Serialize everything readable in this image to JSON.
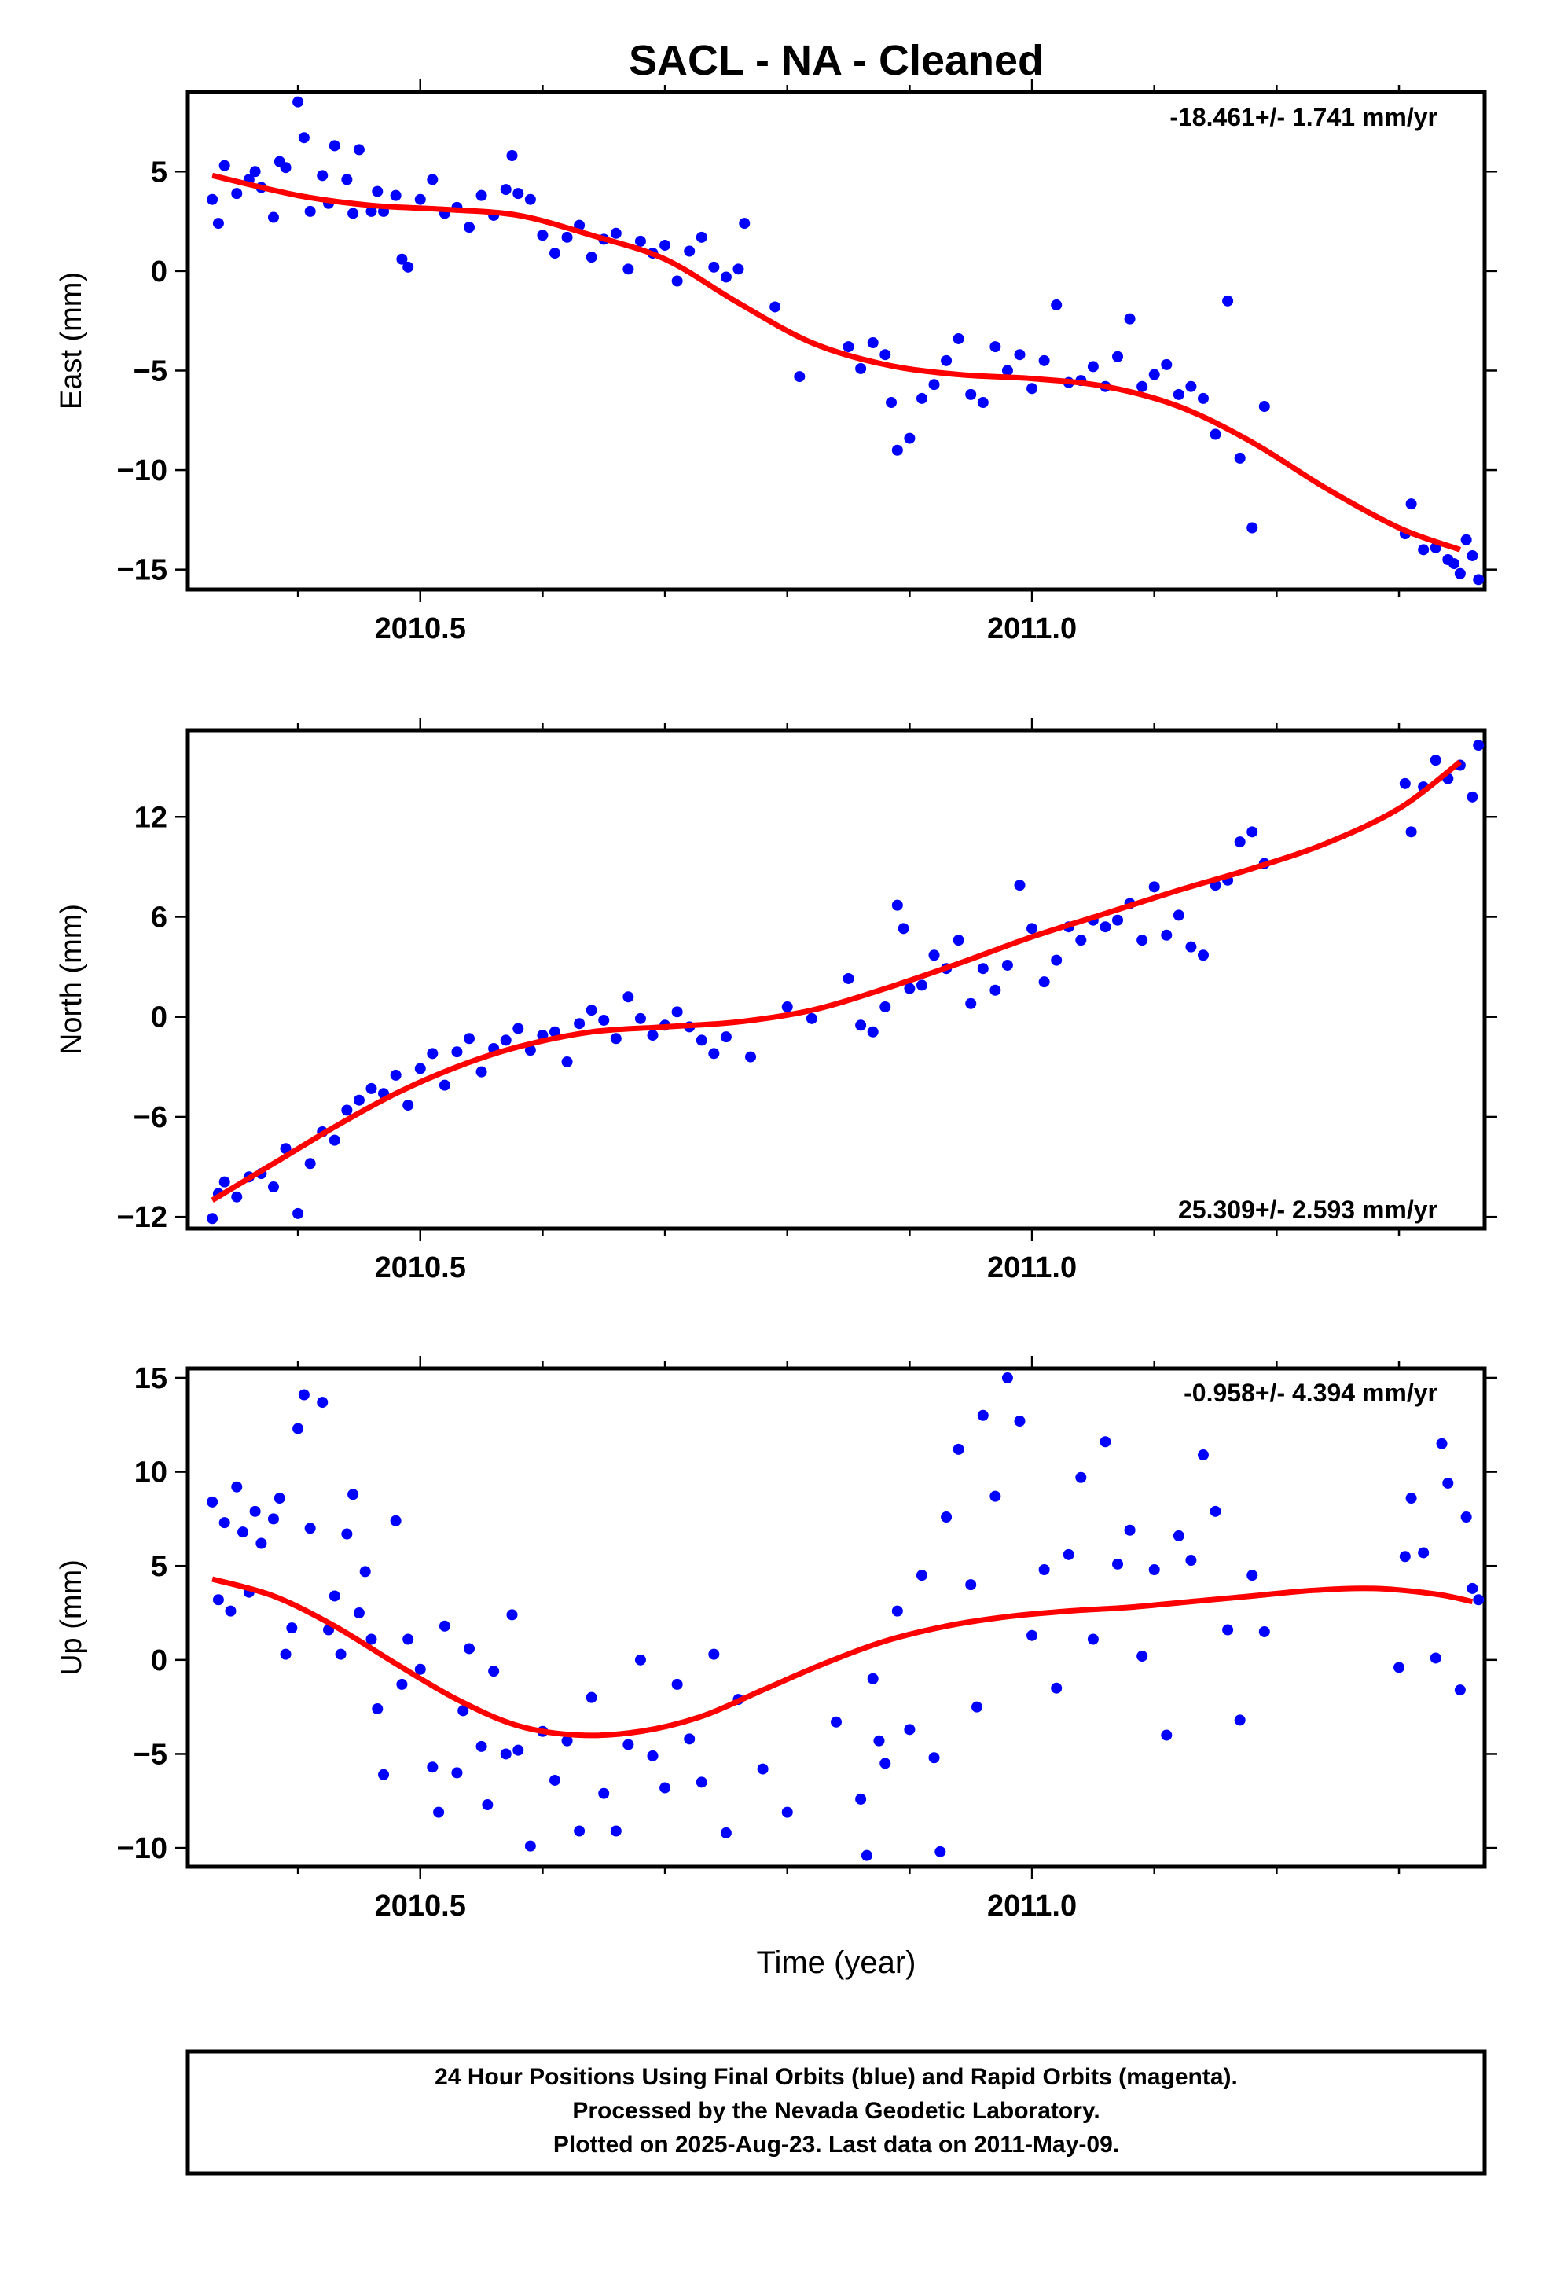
{
  "title": "SACL  - NA - Cleaned",
  "xlabel": "Time (year)",
  "footer": {
    "line1": "24 Hour Positions Using Final Orbits (blue) and Rapid Orbits (magenta).",
    "line2": "Processed by the Nevada Geodetic Laboratory.",
    "line3": "Plotted on 2025-Aug-23. Last data on 2011-May-09."
  },
  "colors": {
    "points": "#0000ff",
    "fit": "#ff0000",
    "frame": "#000000"
  },
  "chart_data": [
    {
      "type": "scatter",
      "ylabel": "East (mm)",
      "rate": "-18.461+/- 1.741 mm/yr",
      "xlim": [
        2010.31,
        2011.37
      ],
      "ylim": [
        -16,
        9
      ],
      "xticks": [
        2010.5,
        2011.0
      ],
      "yticks": [
        5,
        0,
        -5,
        -10,
        -15
      ],
      "fit": {
        "x": [
          2010.33,
          2010.4,
          2010.46,
          2010.52,
          2010.58,
          2010.64,
          2010.7,
          2010.76,
          2010.82,
          2010.88,
          2010.94,
          2011.0,
          2011.06,
          2011.12,
          2011.18,
          2011.24,
          2011.3,
          2011.35
        ],
        "y": [
          4.8,
          3.8,
          3.3,
          3.1,
          2.8,
          1.8,
          0.6,
          -1.6,
          -3.6,
          -4.7,
          -5.2,
          -5.4,
          -5.8,
          -6.8,
          -8.6,
          -10.9,
          -12.9,
          -14.0
        ]
      },
      "points": {
        "x": [
          2010.33,
          2010.335,
          2010.34,
          2010.35,
          2010.36,
          2010.365,
          2010.37,
          2010.38,
          2010.385,
          2010.39,
          2010.4,
          2010.405,
          2010.41,
          2010.42,
          2010.425,
          2010.43,
          2010.44,
          2010.445,
          2010.45,
          2010.46,
          2010.465,
          2010.47,
          2010.48,
          2010.485,
          2010.49,
          2010.5,
          2010.51,
          2010.52,
          2010.53,
          2010.54,
          2010.55,
          2010.56,
          2010.57,
          2010.575,
          2010.58,
          2010.59,
          2010.6,
          2010.61,
          2010.62,
          2010.63,
          2010.64,
          2010.65,
          2010.66,
          2010.67,
          2010.68,
          2010.69,
          2010.7,
          2010.71,
          2010.72,
          2010.73,
          2010.74,
          2010.75,
          2010.76,
          2010.765,
          2010.79,
          2010.81,
          2010.85,
          2010.86,
          2010.87,
          2010.88,
          2010.885,
          2010.89,
          2010.9,
          2010.91,
          2010.92,
          2010.93,
          2010.94,
          2010.95,
          2010.96,
          2010.97,
          2010.98,
          2010.99,
          2011.0,
          2011.01,
          2011.02,
          2011.03,
          2011.04,
          2011.05,
          2011.06,
          2011.07,
          2011.08,
          2011.09,
          2011.1,
          2011.11,
          2011.12,
          2011.13,
          2011.14,
          2011.15,
          2011.16,
          2011.17,
          2011.18,
          2011.19,
          2011.305,
          2011.31,
          2011.32,
          2011.33,
          2011.34,
          2011.35,
          2011.355,
          2011.36,
          2011.365,
          2011.345
        ],
        "y": [
          3.6,
          2.4,
          5.3,
          3.9,
          4.6,
          5.0,
          4.2,
          2.7,
          5.5,
          5.2,
          8.5,
          6.7,
          3.0,
          4.8,
          3.4,
          6.3,
          4.6,
          2.9,
          6.1,
          3.0,
          4.0,
          3.0,
          3.8,
          0.6,
          0.2,
          3.6,
          4.6,
          2.9,
          3.2,
          2.2,
          3.8,
          2.8,
          4.1,
          5.8,
          3.9,
          3.6,
          1.8,
          0.9,
          1.7,
          2.3,
          0.7,
          1.6,
          1.9,
          0.1,
          1.5,
          0.9,
          1.3,
          -0.5,
          1.0,
          1.7,
          0.2,
          -0.3,
          0.1,
          2.4,
          -1.8,
          -5.3,
          -3.8,
          -4.9,
          -3.6,
          -4.2,
          -6.6,
          -9.0,
          -8.4,
          -6.4,
          -5.7,
          -4.5,
          -3.4,
          -6.2,
          -6.6,
          -3.8,
          -5.0,
          -4.2,
          -5.9,
          -4.5,
          -1.7,
          -5.6,
          -5.5,
          -4.8,
          -5.8,
          -4.3,
          -2.4,
          -5.8,
          -5.2,
          -4.7,
          -6.2,
          -5.8,
          -6.4,
          -8.2,
          -1.5,
          -9.4,
          -12.9,
          -6.8,
          -13.2,
          -11.7,
          -14.0,
          -13.9,
          -14.5,
          -15.2,
          -13.5,
          -14.3,
          -15.5,
          -14.7
        ]
      }
    },
    {
      "type": "scatter",
      "ylabel": "North (mm)",
      "rate": "25.309+/- 2.593 mm/yr",
      "xlim": [
        2010.31,
        2011.37
      ],
      "ylim": [
        -12.7,
        17.2
      ],
      "xticks": [
        2010.5,
        2011.0
      ],
      "yticks": [
        12,
        6,
        0,
        -6,
        -12
      ],
      "fit": {
        "x": [
          2010.33,
          2010.38,
          2010.43,
          2010.48,
          2010.53,
          2010.58,
          2010.64,
          2010.7,
          2010.76,
          2010.82,
          2010.88,
          2010.94,
          2011.0,
          2011.06,
          2011.12,
          2011.18,
          2011.24,
          2011.3,
          2011.35
        ],
        "y": [
          -11.0,
          -8.8,
          -6.6,
          -4.6,
          -3.0,
          -1.8,
          -0.9,
          -0.6,
          -0.3,
          0.4,
          1.7,
          3.2,
          4.8,
          6.2,
          7.6,
          8.9,
          10.4,
          12.5,
          15.3
        ]
      },
      "points": {
        "x": [
          2010.33,
          2010.335,
          2010.34,
          2010.35,
          2010.36,
          2010.37,
          2010.38,
          2010.39,
          2010.4,
          2010.41,
          2010.42,
          2010.43,
          2010.44,
          2010.45,
          2010.46,
          2010.47,
          2010.48,
          2010.49,
          2010.5,
          2010.51,
          2010.52,
          2010.53,
          2010.54,
          2010.55,
          2010.56,
          2010.57,
          2010.58,
          2010.59,
          2010.6,
          2010.61,
          2010.62,
          2010.63,
          2010.64,
          2010.65,
          2010.66,
          2010.67,
          2010.68,
          2010.69,
          2010.7,
          2010.71,
          2010.72,
          2010.73,
          2010.74,
          2010.75,
          2010.77,
          2010.8,
          2010.82,
          2010.85,
          2010.86,
          2010.87,
          2010.88,
          2010.89,
          2010.895,
          2010.9,
          2010.91,
          2010.92,
          2010.93,
          2010.94,
          2010.95,
          2010.96,
          2010.97,
          2010.98,
          2010.99,
          2011.0,
          2011.01,
          2011.02,
          2011.03,
          2011.04,
          2011.05,
          2011.06,
          2011.07,
          2011.08,
          2011.09,
          2011.1,
          2011.11,
          2011.12,
          2011.13,
          2011.14,
          2011.15,
          2011.16,
          2011.17,
          2011.18,
          2011.19,
          2011.305,
          2011.31,
          2011.32,
          2011.33,
          2011.34,
          2011.35,
          2011.36,
          2011.365
        ],
        "y": [
          -12.1,
          -10.6,
          -9.9,
          -10.8,
          -9.6,
          -9.4,
          -10.2,
          -7.9,
          -11.8,
          -8.8,
          -6.9,
          -7.4,
          -5.6,
          -5.0,
          -4.3,
          -4.6,
          -3.5,
          -5.3,
          -3.1,
          -2.2,
          -4.1,
          -2.1,
          -1.3,
          -3.3,
          -1.9,
          -1.4,
          -0.7,
          -2.0,
          -1.1,
          -0.9,
          -2.7,
          -0.4,
          0.4,
          -0.2,
          -1.3,
          1.2,
          -0.1,
          -1.1,
          -0.5,
          0.3,
          -0.6,
          -1.4,
          -2.2,
          -1.2,
          -2.4,
          0.6,
          -0.1,
          2.3,
          -0.5,
          -0.9,
          0.6,
          6.7,
          5.3,
          1.7,
          1.9,
          3.7,
          2.9,
          4.6,
          0.8,
          2.9,
          1.6,
          3.1,
          7.9,
          5.3,
          2.1,
          3.4,
          5.4,
          4.6,
          5.8,
          5.4,
          5.8,
          6.8,
          4.6,
          7.8,
          4.9,
          6.1,
          4.2,
          3.7,
          7.9,
          8.2,
          10.5,
          11.1,
          9.2,
          14.0,
          11.1,
          13.8,
          15.4,
          14.3,
          15.1,
          13.2,
          16.3
        ]
      }
    },
    {
      "type": "scatter",
      "ylabel": "Up (mm)",
      "rate": "-0.958+/- 4.394 mm/yr",
      "xlim": [
        2010.31,
        2011.37
      ],
      "ylim": [
        -11,
        15.5
      ],
      "xticks": [
        2010.5,
        2011.0
      ],
      "yticks": [
        15,
        10,
        5,
        0,
        -5,
        -10
      ],
      "fit": {
        "x": [
          2010.33,
          2010.38,
          2010.43,
          2010.48,
          2010.53,
          2010.58,
          2010.63,
          2010.68,
          2010.73,
          2010.78,
          2010.83,
          2010.88,
          2010.93,
          2010.98,
          2011.03,
          2011.08,
          2011.13,
          2011.18,
          2011.23,
          2011.28,
          2011.33,
          2011.36
        ],
        "y": [
          4.3,
          3.4,
          1.8,
          -0.2,
          -2.1,
          -3.5,
          -4.0,
          -3.8,
          -3.0,
          -1.6,
          -0.2,
          1.0,
          1.8,
          2.3,
          2.6,
          2.8,
          3.1,
          3.4,
          3.7,
          3.8,
          3.5,
          3.1
        ]
      },
      "points": {
        "x": [
          2010.33,
          2010.335,
          2010.34,
          2010.345,
          2010.35,
          2010.355,
          2010.36,
          2010.365,
          2010.37,
          2010.38,
          2010.385,
          2010.39,
          2010.395,
          2010.4,
          2010.405,
          2010.41,
          2010.42,
          2010.425,
          2010.43,
          2010.435,
          2010.44,
          2010.445,
          2010.45,
          2010.455,
          2010.46,
          2010.465,
          2010.47,
          2010.48,
          2010.485,
          2010.49,
          2010.5,
          2010.51,
          2010.515,
          2010.52,
          2010.53,
          2010.535,
          2010.54,
          2010.55,
          2010.555,
          2010.56,
          2010.57,
          2010.575,
          2010.58,
          2010.59,
          2010.6,
          2010.61,
          2010.62,
          2010.63,
          2010.64,
          2010.65,
          2010.66,
          2010.67,
          2010.68,
          2010.69,
          2010.7,
          2010.71,
          2010.72,
          2010.73,
          2010.74,
          2010.75,
          2010.76,
          2010.78,
          2010.8,
          2010.84,
          2010.86,
          2010.865,
          2010.87,
          2010.875,
          2010.88,
          2010.89,
          2010.9,
          2010.91,
          2010.92,
          2010.925,
          2010.93,
          2010.94,
          2010.95,
          2010.955,
          2010.96,
          2010.97,
          2010.98,
          2010.99,
          2011.0,
          2011.01,
          2011.02,
          2011.03,
          2011.04,
          2011.05,
          2011.06,
          2011.07,
          2011.08,
          2011.09,
          2011.1,
          2011.11,
          2011.12,
          2011.13,
          2011.14,
          2011.15,
          2011.16,
          2011.17,
          2011.18,
          2011.19,
          2011.3,
          2011.305,
          2011.31,
          2011.32,
          2011.33,
          2011.335,
          2011.34,
          2011.35,
          2011.355,
          2011.36,
          2011.365
        ],
        "y": [
          8.4,
          3.2,
          7.3,
          2.6,
          9.2,
          6.8,
          3.6,
          7.9,
          6.2,
          7.5,
          8.6,
          0.3,
          1.7,
          12.3,
          14.1,
          7.0,
          13.7,
          1.6,
          3.4,
          0.3,
          6.7,
          8.8,
          2.5,
          4.7,
          1.1,
          -2.6,
          -6.1,
          7.4,
          -1.3,
          1.1,
          -0.5,
          -5.7,
          -8.1,
          1.8,
          -6.0,
          -2.7,
          0.6,
          -4.6,
          -7.7,
          -0.6,
          -5.0,
          2.4,
          -4.8,
          -9.9,
          -3.8,
          -6.4,
          -4.3,
          -9.1,
          -2.0,
          -7.1,
          -9.1,
          -4.5,
          0.0,
          -5.1,
          -6.8,
          -1.3,
          -4.2,
          -6.5,
          0.3,
          -9.2,
          -2.1,
          -5.8,
          -8.1,
          -3.3,
          -7.4,
          -10.4,
          -1.0,
          -4.3,
          -5.5,
          2.6,
          -3.7,
          4.5,
          -5.2,
          -10.2,
          7.6,
          11.2,
          4.0,
          -2.5,
          13.0,
          8.7,
          15.0,
          12.7,
          1.3,
          4.8,
          -1.5,
          5.6,
          9.7,
          1.1,
          11.6,
          5.1,
          6.9,
          0.2,
          4.8,
          -4.0,
          6.6,
          5.3,
          10.9,
          7.9,
          1.6,
          -3.2,
          4.5,
          1.5,
          -0.4,
          5.5,
          8.6,
          5.7,
          0.1,
          11.5,
          9.4,
          -1.6,
          7.6,
          3.8,
          3.2
        ]
      }
    }
  ]
}
